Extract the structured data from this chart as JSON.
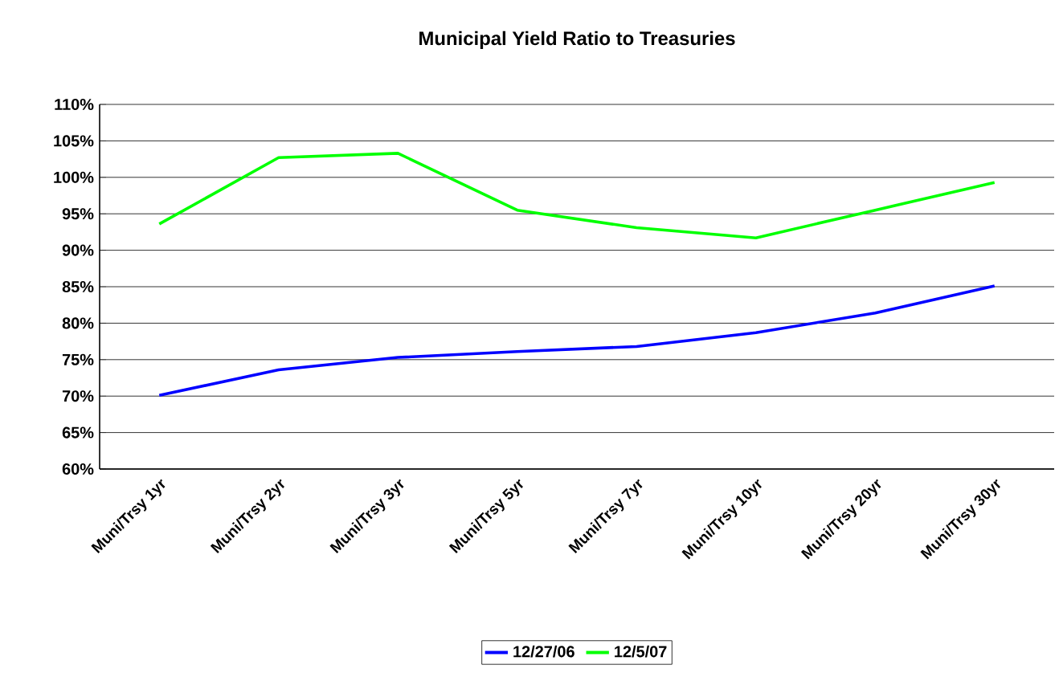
{
  "chart_data": {
    "type": "line",
    "title": "Municipal Yield Ratio to Treasuries",
    "categories": [
      "Muni/Trsy 1yr",
      "Muni/Trsy 2yr",
      "Muni/Trsy 3yr",
      "Muni/Trsy 5yr",
      "Muni/Trsy 7yr",
      "Muni/Trsy 10yr",
      "Muni/Trsy 20yr",
      "Muni/Trsy 30yr"
    ],
    "series": [
      {
        "name": "12/27/06",
        "color": "#0000ff",
        "values": [
          70.1,
          73.6,
          75.3,
          76.1,
          76.8,
          78.7,
          81.4,
          85.1
        ]
      },
      {
        "name": "12/5/07",
        "color": "#00ff00",
        "values": [
          93.6,
          102.7,
          103.3,
          95.5,
          93.1,
          91.7,
          95.5,
          99.3
        ]
      }
    ],
    "ylim": [
      60,
      110
    ],
    "yticks": [
      {
        "value": 60,
        "label": "60%"
      },
      {
        "value": 65,
        "label": "65%"
      },
      {
        "value": 70,
        "label": "70%"
      },
      {
        "value": 75,
        "label": "75%"
      },
      {
        "value": 80,
        "label": "80%"
      },
      {
        "value": 85,
        "label": "85%"
      },
      {
        "value": 90,
        "label": "90%"
      },
      {
        "value": 95,
        "label": "95%"
      },
      {
        "value": 100,
        "label": "100%"
      },
      {
        "value": 105,
        "label": "105%"
      },
      {
        "value": 110,
        "label": "110%"
      }
    ],
    "grid": "y",
    "legend": "bottom",
    "marker": "none",
    "line_style": "solid"
  }
}
